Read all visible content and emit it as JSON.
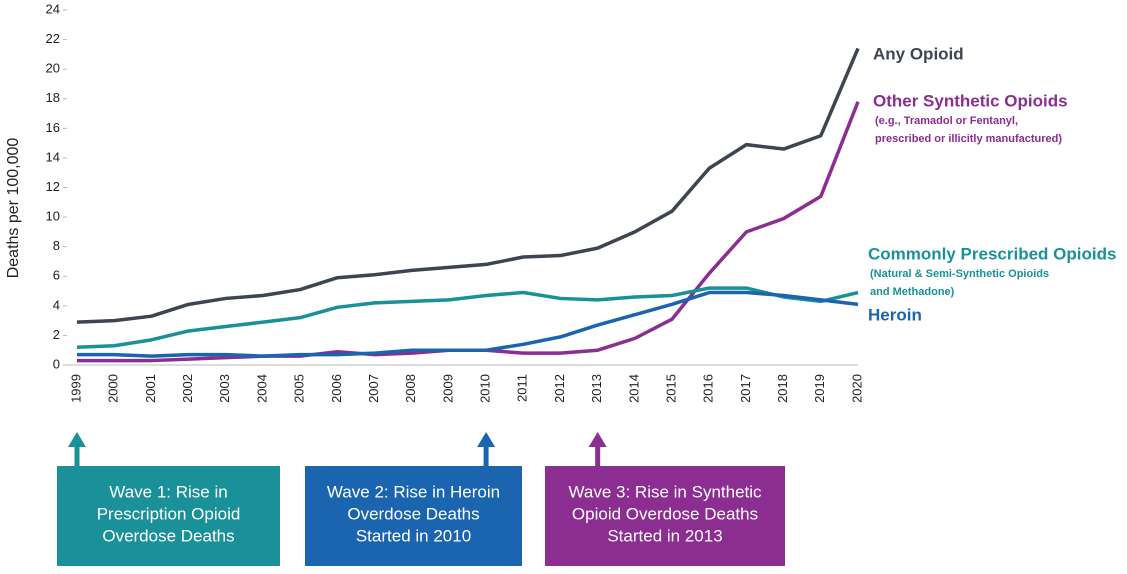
{
  "chart_data": {
    "type": "line",
    "y_label": "Deaths per 100,000",
    "x": [
      1999,
      2000,
      2001,
      2002,
      2003,
      2004,
      2005,
      2006,
      2007,
      2008,
      2009,
      2010,
      2011,
      2012,
      2013,
      2014,
      2015,
      2016,
      2017,
      2018,
      2019,
      2020
    ],
    "xlim": [
      1999,
      2020
    ],
    "ylim": [
      0,
      24
    ],
    "yticks": [
      0,
      2,
      4,
      6,
      8,
      10,
      12,
      14,
      16,
      18,
      20,
      22,
      24
    ],
    "series": [
      {
        "name": "Any Opioid",
        "color": "#3d4550",
        "values": [
          2.9,
          3.0,
          3.3,
          4.1,
          4.5,
          4.7,
          5.1,
          5.9,
          6.1,
          6.4,
          6.6,
          6.8,
          7.3,
          7.4,
          7.9,
          9.0,
          10.4,
          13.3,
          14.9,
          14.6,
          15.5,
          21.4
        ]
      },
      {
        "name": "Other Synthetic Opioids",
        "color": "#8b2d91",
        "note": [
          "(e.g., Tramadol or Fentanyl,",
          "prescribed or illicitly manufactured)"
        ],
        "values": [
          0.3,
          0.3,
          0.3,
          0.4,
          0.5,
          0.6,
          0.6,
          0.9,
          0.7,
          0.8,
          1.0,
          1.0,
          0.8,
          0.8,
          1.0,
          1.8,
          3.1,
          6.2,
          9.0,
          9.9,
          11.4,
          17.8
        ]
      },
      {
        "name": "Commonly Prescribed Opioids",
        "color": "#1a9099",
        "note": [
          "(Natural & Semi-Synthetic Opioids",
          "and Methadone)"
        ],
        "values": [
          1.2,
          1.3,
          1.7,
          2.3,
          2.6,
          2.9,
          3.2,
          3.9,
          4.2,
          4.3,
          4.4,
          4.7,
          4.9,
          4.5,
          4.4,
          4.6,
          4.7,
          5.2,
          5.2,
          4.6,
          4.3,
          4.9
        ]
      },
      {
        "name": "Heroin",
        "color": "#1a64b0",
        "values": [
          0.7,
          0.7,
          0.6,
          0.7,
          0.7,
          0.6,
          0.7,
          0.7,
          0.8,
          1.0,
          1.0,
          1.0,
          1.4,
          1.9,
          2.7,
          3.4,
          4.1,
          4.9,
          4.9,
          4.7,
          4.4,
          4.1
        ]
      }
    ],
    "annotations": [
      {
        "x": 1999,
        "color": "#1a9099",
        "lines": [
          "Wave 1: Rise in",
          "Prescription Opioid",
          "Overdose Deaths"
        ]
      },
      {
        "x": 2010,
        "color": "#1a64b0",
        "lines": [
          "Wave 2: Rise in Heroin",
          "Overdose Deaths",
          "Started in 2010"
        ]
      },
      {
        "x": 2013,
        "color": "#8b2d91",
        "lines": [
          "Wave 3: Rise in Synthetic",
          "Opioid Overdose Deaths",
          "Started in 2013"
        ]
      }
    ]
  }
}
